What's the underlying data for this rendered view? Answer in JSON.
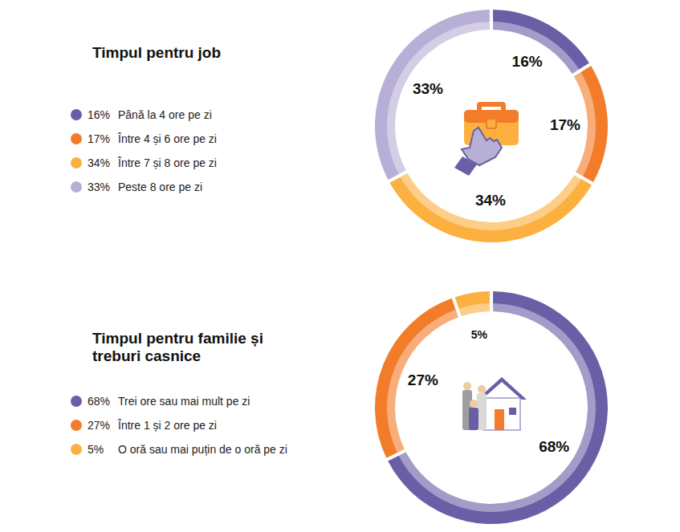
{
  "chart_data": [
    {
      "type": "donut",
      "title": "Timpul pentru job",
      "categories": [
        "Până la 4 ore pe zi",
        "Între 4 și 6 ore pe zi",
        "Între 7 și 8 ore pe zi",
        "Peste 8 ore pe zi"
      ],
      "values": [
        16,
        17,
        34,
        33
      ],
      "value_labels": [
        "16%",
        "17%",
        "34%",
        "33%"
      ],
      "colors": [
        "#6a5fa6",
        "#f37c2a",
        "#fbb040",
        "#b8afd6"
      ],
      "data_labels": true,
      "legend": "left"
    },
    {
      "type": "donut",
      "title": "Timpul pentru familie și treburi casnice",
      "categories": [
        "Trei ore sau mai mult pe zi",
        "Între 1 și 2 ore pe zi",
        "O oră sau mai puțin de o oră pe zi"
      ],
      "values": [
        68,
        27,
        5
      ],
      "value_labels": [
        "68%",
        "27%",
        "5%"
      ],
      "colors": [
        "#6a5fa6",
        "#f37c2a",
        "#fbb040"
      ],
      "data_labels": true,
      "legend": "left"
    }
  ]
}
